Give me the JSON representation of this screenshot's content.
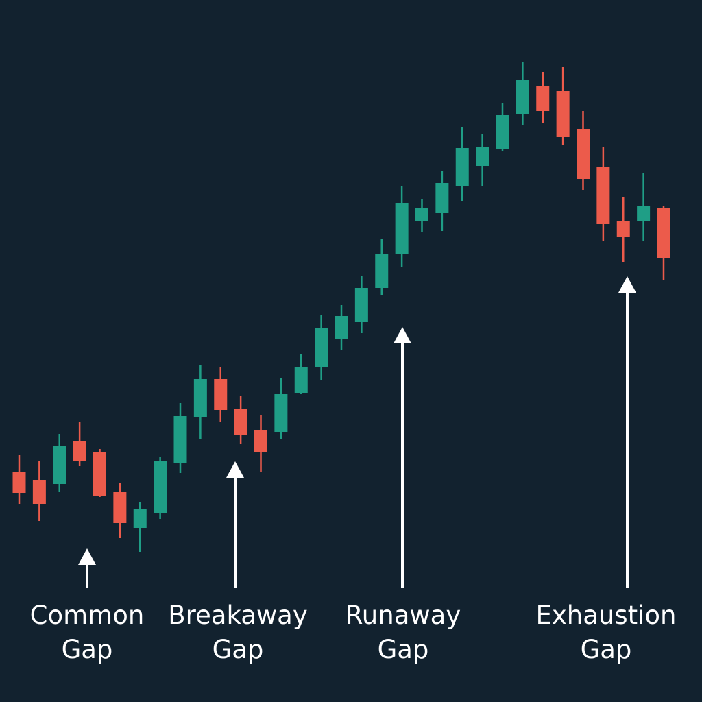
{
  "chart_data": {
    "type": "candlestick",
    "up_color": "#1f9e86",
    "down_color": "#ec5b4b",
    "background": "#12222f",
    "ylim": [
      0,
      100
    ],
    "open": [
      31.1,
      30.0,
      29.4,
      35.7,
      34.0,
      28.2,
      23.0,
      25.2,
      32.4,
      39.2,
      44.7,
      40.3,
      37.3,
      37.0,
      42.7,
      46.5,
      50.5,
      53.1,
      58.0,
      63.0,
      67.8,
      69.0,
      72.9,
      75.8,
      78.3,
      83.3,
      87.5,
      86.7,
      81.2,
      75.6,
      67.8,
      67.8,
      69.6
    ],
    "high": [
      33.7,
      32.8,
      36.7,
      38.4,
      34.5,
      29.5,
      26.8,
      33.3,
      41.2,
      46.7,
      46.5,
      42.3,
      39.4,
      44.8,
      48.3,
      54.0,
      55.5,
      59.7,
      65.2,
      72.8,
      71.0,
      75.0,
      81.5,
      80.5,
      85.0,
      91.0,
      89.5,
      90.2,
      83.8,
      78.6,
      71.3,
      74.7,
      70.0
    ],
    "low": [
      26.5,
      24.0,
      28.3,
      32.0,
      27.5,
      21.5,
      19.5,
      24.3,
      31.0,
      36.0,
      38.5,
      35.3,
      31.2,
      36.0,
      42.5,
      44.5,
      49.0,
      51.4,
      57.0,
      61.0,
      66.2,
      66.3,
      70.7,
      72.8,
      78.0,
      81.7,
      82.0,
      78.8,
      72.3,
      64.8,
      61.8,
      64.9,
      59.2
    ],
    "close": [
      28.1,
      26.5,
      35.0,
      32.7,
      27.7,
      23.7,
      25.7,
      32.7,
      39.3,
      44.7,
      40.2,
      36.5,
      34.0,
      42.5,
      46.5,
      52.2,
      53.9,
      58.0,
      63.0,
      70.4,
      69.7,
      73.3,
      78.4,
      78.5,
      83.2,
      88.3,
      83.8,
      80.0,
      73.9,
      67.3,
      65.5,
      70.0,
      62.4
    ],
    "annotations": [
      {
        "text": [
          "Common",
          "Gap"
        ]
      },
      {
        "text": [
          "Breakaway",
          "Gap"
        ]
      },
      {
        "text": [
          "Runaway",
          "Gap"
        ]
      },
      {
        "text": [
          "Exhaustion",
          "Gap"
        ]
      }
    ]
  }
}
